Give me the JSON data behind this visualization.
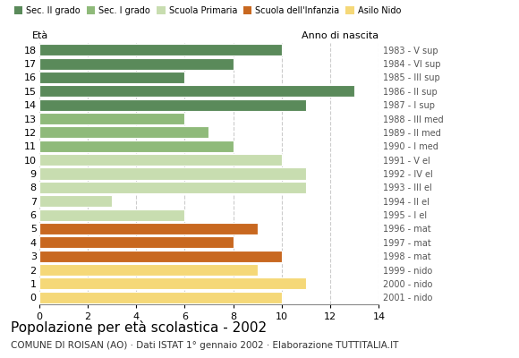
{
  "ages": [
    18,
    17,
    16,
    15,
    14,
    13,
    12,
    11,
    10,
    9,
    8,
    7,
    6,
    5,
    4,
    3,
    2,
    1,
    0
  ],
  "values": [
    10,
    8,
    6,
    13,
    11,
    6,
    7,
    8,
    10,
    11,
    11,
    3,
    6,
    9,
    8,
    10,
    9,
    11,
    10
  ],
  "anno_di_nascita": [
    "1983 - V sup",
    "1984 - VI sup",
    "1985 - III sup",
    "1986 - II sup",
    "1987 - I sup",
    "1988 - III med",
    "1989 - II med",
    "1990 - I med",
    "1991 - V el",
    "1992 - IV el",
    "1993 - III el",
    "1994 - II el",
    "1995 - I el",
    "1996 - mat",
    "1997 - mat",
    "1998 - mat",
    "1999 - nido",
    "2000 - nido",
    "2001 - nido"
  ],
  "bar_colors": [
    "#5a8a5a",
    "#5a8a5a",
    "#5a8a5a",
    "#5a8a5a",
    "#5a8a5a",
    "#8fba7a",
    "#8fba7a",
    "#8fba7a",
    "#c8ddb0",
    "#c8ddb0",
    "#c8ddb0",
    "#c8ddb0",
    "#c8ddb0",
    "#c86820",
    "#c86820",
    "#c86820",
    "#f5d878",
    "#f5d878",
    "#f5d878"
  ],
  "title": "Popolazione per età scolastica - 2002",
  "subtitle": "COMUNE DI ROISAN (AO) · Dati ISTAT 1° gennaio 2002 · Elaborazione TUTTITALIA.IT",
  "label_eta": "Età",
  "label_anno": "Anno di nascita",
  "xlim": [
    0,
    14
  ],
  "xticks": [
    0,
    2,
    4,
    6,
    8,
    10,
    12,
    14
  ],
  "legend_labels": [
    "Sec. II grado",
    "Sec. I grado",
    "Scuola Primaria",
    "Scuola dell'Infanzia",
    "Asilo Nido"
  ],
  "legend_colors": [
    "#5a8a5a",
    "#8fba7a",
    "#c8ddb0",
    "#c86820",
    "#f5d878"
  ],
  "bg_color": "#ffffff",
  "grid_color": "#cccccc"
}
